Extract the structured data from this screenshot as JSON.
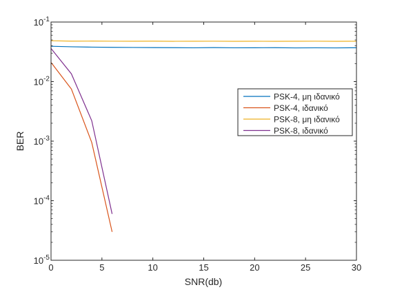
{
  "chart_data": {
    "type": "line",
    "xlabel": "SNR(db)",
    "ylabel": "BER",
    "xlim": [
      0,
      30
    ],
    "ylim": [
      1e-05,
      0.1
    ],
    "yscale": "log",
    "grid": false,
    "legend_position": "right",
    "x_ticks": [
      {
        "value": 0,
        "label": "0"
      },
      {
        "value": 5,
        "label": "5"
      },
      {
        "value": 10,
        "label": "10"
      },
      {
        "value": 15,
        "label": "15"
      },
      {
        "value": 20,
        "label": "20"
      },
      {
        "value": 25,
        "label": "25"
      },
      {
        "value": 30,
        "label": "30"
      }
    ],
    "y_ticks": [
      {
        "value": 1e-05,
        "base": "10",
        "exp": "-5"
      },
      {
        "value": 0.0001,
        "base": "10",
        "exp": "-4"
      },
      {
        "value": 0.001,
        "base": "10",
        "exp": "-3"
      },
      {
        "value": 0.01,
        "base": "10",
        "exp": "-2"
      },
      {
        "value": 0.1,
        "base": "10",
        "exp": "-1"
      }
    ],
    "series": [
      {
        "name": "PSK-4, μη ιδανικό",
        "color": "#0072BD",
        "x": [
          0,
          2,
          4,
          6,
          8,
          10,
          12,
          14,
          16,
          18,
          20,
          22,
          24,
          26,
          28,
          30
        ],
        "y": [
          0.0392,
          0.0384,
          0.0379,
          0.0376,
          0.0374,
          0.0372,
          0.0371,
          0.0369,
          0.0372,
          0.0369,
          0.037,
          0.0371,
          0.0368,
          0.0369,
          0.0368,
          0.037
        ]
      },
      {
        "name": "PSK-4, ιδανικό",
        "color": "#D95319",
        "x": [
          0,
          2,
          4,
          6
        ],
        "y": [
          0.021,
          0.0075,
          0.00095,
          3e-05
        ]
      },
      {
        "name": "PSK-8, μη ιδανικό",
        "color": "#EDB120",
        "x": [
          0,
          2,
          4,
          6,
          8,
          10,
          12,
          14,
          16,
          18,
          20,
          22,
          24,
          26,
          28,
          30
        ],
        "y": [
          0.0485,
          0.0478,
          0.0479,
          0.0477,
          0.0476,
          0.0478,
          0.0475,
          0.0476,
          0.0477,
          0.0475,
          0.0476,
          0.0475,
          0.0476,
          0.0477,
          0.0475,
          0.0476
        ]
      },
      {
        "name": "PSK-8, ιδανικό",
        "color": "#7E2F8E",
        "x": [
          0,
          2,
          4,
          6
        ],
        "y": [
          0.036,
          0.0135,
          0.0022,
          6e-05
        ]
      }
    ]
  }
}
